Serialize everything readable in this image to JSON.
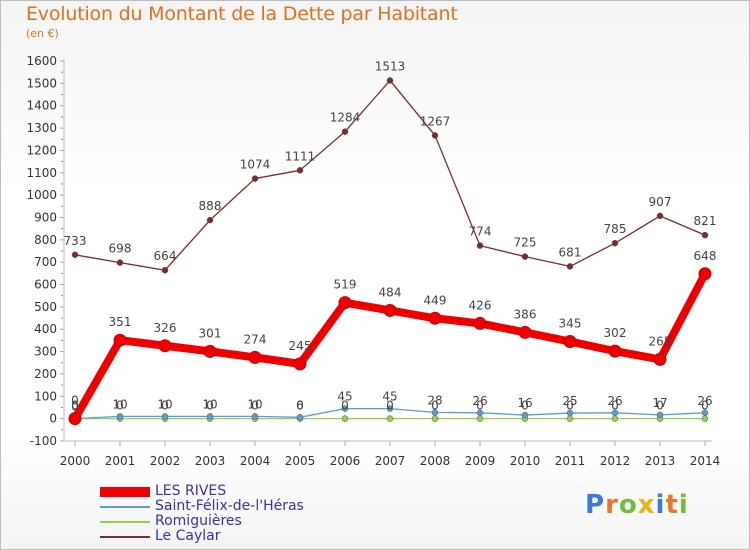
{
  "header": {
    "title": "Evolution du Montant de la Dette par Habitant",
    "subtitle": "(en €)"
  },
  "logo": {
    "letters": [
      "P",
      "r",
      "o",
      "x",
      "i",
      "t",
      "i"
    ],
    "colors": [
      "#3a7bd5",
      "#e8762b",
      "#6cbf3a",
      "#e8b21c",
      "#3a7bd5",
      "#e8762b",
      "#6cbf3a"
    ]
  },
  "chart_data": {
    "type": "line",
    "title": "Evolution du Montant de la Dette par Habitant",
    "subtitle": "(en €)",
    "xlabel": "",
    "ylabel": "",
    "ylim": [
      -100,
      1600
    ],
    "yticks": [
      -100,
      0,
      100,
      200,
      300,
      400,
      500,
      600,
      700,
      800,
      900,
      1000,
      1100,
      1200,
      1300,
      1400,
      1500,
      1600
    ],
    "categories": [
      "2000",
      "2001",
      "2002",
      "2003",
      "2004",
      "2005",
      "2006",
      "2007",
      "2008",
      "2009",
      "2010",
      "2011",
      "2012",
      "2013",
      "2014"
    ],
    "grid": false,
    "legend_position": "bottom-left",
    "series": [
      {
        "name": "LES RIVES",
        "color": "#ee0000",
        "values": [
          0,
          351,
          326,
          301,
          274,
          245,
          519,
          484,
          449,
          426,
          386,
          345,
          302,
          265,
          648
        ]
      },
      {
        "name": "Saint-Félix-de-l'Héras",
        "color": "#5b9bd5",
        "values": [
          0,
          10,
          10,
          10,
          10,
          6,
          45,
          45,
          28,
          26,
          16,
          25,
          26,
          17,
          26
        ]
      },
      {
        "name": "Romiguières",
        "color": "#92d050",
        "values": [
          0,
          0,
          0,
          0,
          0,
          0,
          0,
          0,
          0,
          0,
          0,
          0,
          0,
          0,
          0
        ]
      },
      {
        "name": "Le Caylar",
        "color": "#7b2c2c",
        "values": [
          733,
          698,
          664,
          888,
          1074,
          1111,
          1284,
          1513,
          1267,
          774,
          725,
          681,
          785,
          907,
          821
        ]
      }
    ]
  }
}
